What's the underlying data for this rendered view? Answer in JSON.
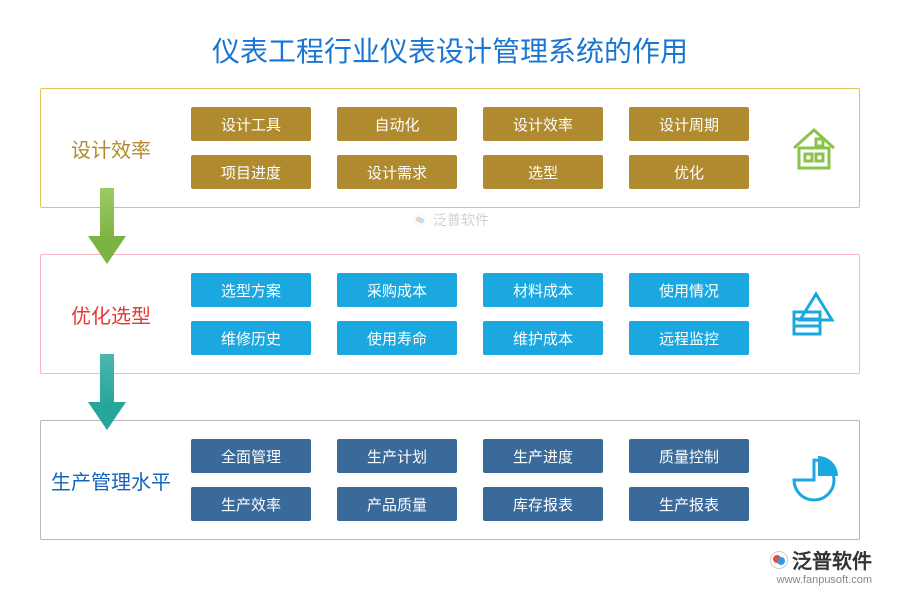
{
  "title": {
    "text": "仪表工程行业仪表设计管理系统的作用",
    "color": "#1976d2"
  },
  "watermark": {
    "text": "泛普软件"
  },
  "footer": {
    "brand": "泛普软件",
    "url": "www.fanpusoft.com"
  },
  "arrows": [
    {
      "shaft_gradient_top": "#9ccc65",
      "shaft_gradient_bottom": "#7cb342",
      "head_color": "#7cb342"
    },
    {
      "shaft_gradient_top": "#4db6ac",
      "shaft_gradient_bottom": "#26a69a",
      "head_color": "#26a69a"
    }
  ],
  "sections": [
    {
      "label": "设计效率",
      "label_color": "#b08a2e",
      "border_color": "#e6c15a",
      "tag_bg": "#b08a2e",
      "icon": "house",
      "icon_color": "#8bc34a",
      "tags": [
        "设计工具",
        "自动化",
        "设计效率",
        "设计周期",
        "项目进度",
        "设计需求",
        "选型",
        "优化"
      ]
    },
    {
      "label": "优化选型",
      "label_color": "#e53935",
      "border_color": "#f7b6c2",
      "tag_bg": "#1ba8e0",
      "icon": "shapes",
      "icon_color": "#1ba8e0",
      "tags": [
        "选型方案",
        "采购成本",
        "材料成本",
        "使用情况",
        "维修历史",
        "使用寿命",
        "维护成本",
        "远程监控"
      ]
    },
    {
      "label": "生产管理水平",
      "label_color": "#1565c0",
      "border_color": "#b8b8b8",
      "tag_bg": "#3a6a9a",
      "icon": "pie",
      "icon_color": "#1ba8e0",
      "tags": [
        "全面管理",
        "生产计划",
        "生产进度",
        "质量控制",
        "生产效率",
        "产品质量",
        "库存报表",
        "生产报表"
      ]
    }
  ]
}
